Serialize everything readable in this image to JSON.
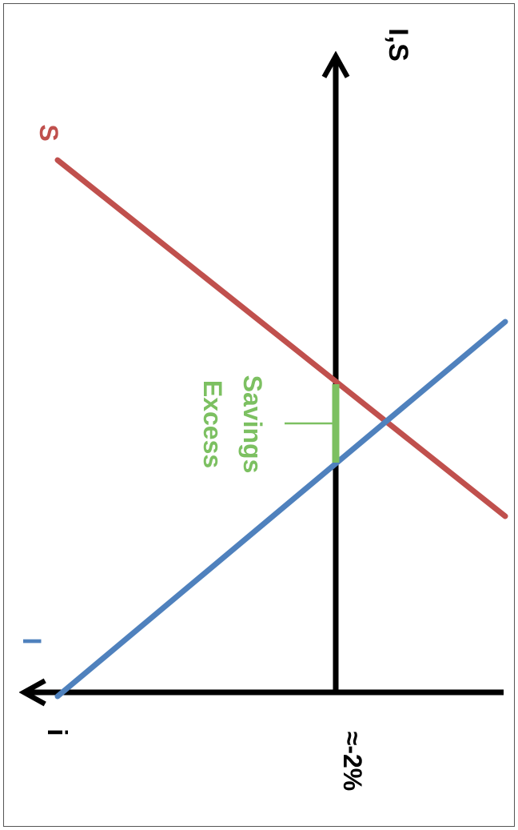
{
  "diagram": {
    "y_axis_label": "i",
    "x_axis_label": "I,S",
    "rate_label": "≈-2%",
    "saving_curve_label": "S",
    "investment_curve_label": "I",
    "gap_label_line1": "Excess",
    "gap_label_line2": "Savings"
  },
  "colors": {
    "axis": "#000000",
    "saving": "#c0504d",
    "investment": "#4f81bd",
    "gap": "#7cc061"
  }
}
